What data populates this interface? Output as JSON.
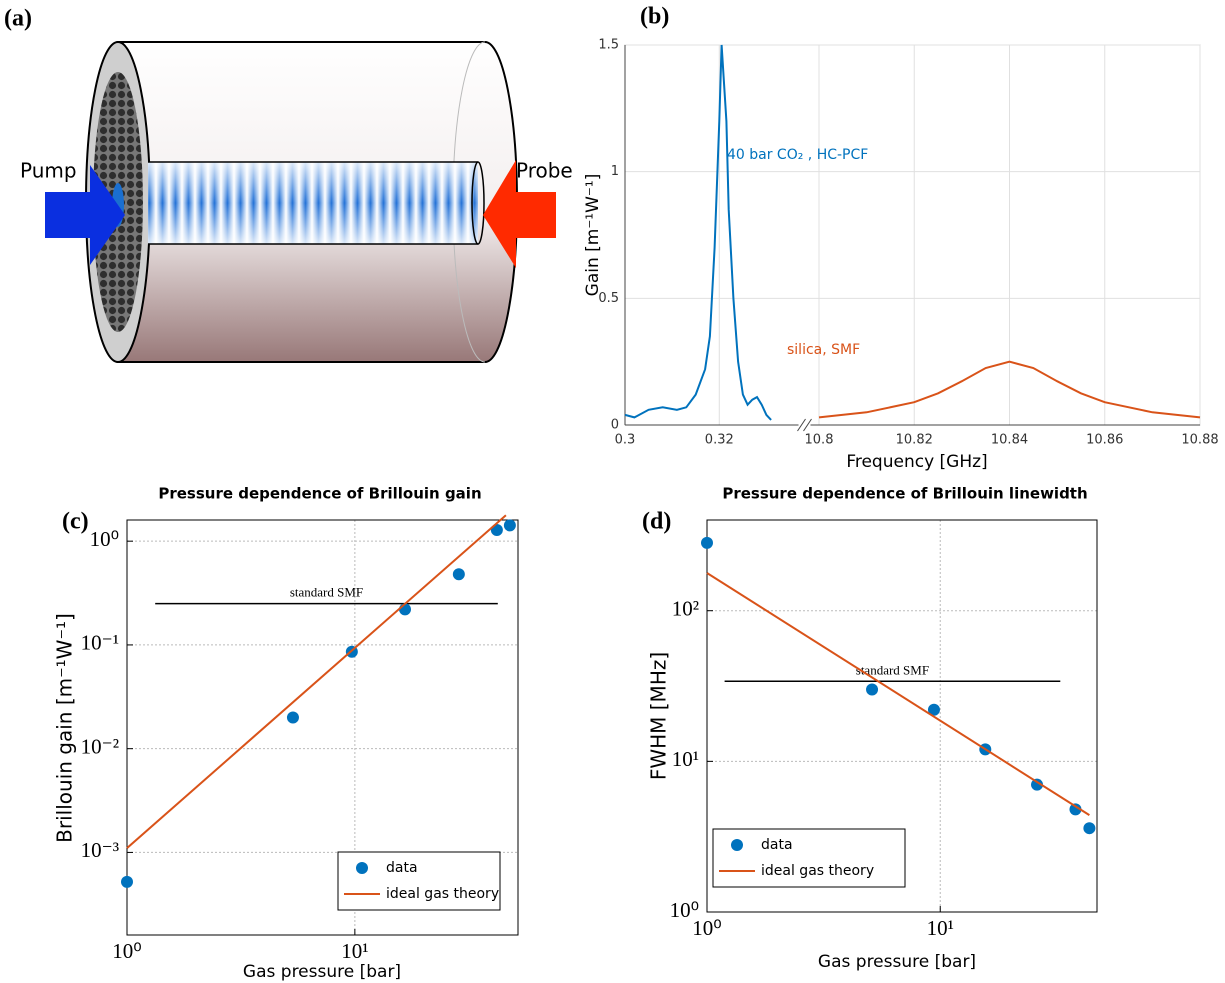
{
  "diagram": {
    "label": "(a)",
    "pump_label": "Pump",
    "probe_label": "Probe"
  },
  "chart_data": [
    {
      "type": "line",
      "panel_label": "(b)",
      "xlabel": "Frequency [GHz]",
      "ylabel": "Gain [m⁻¹W⁻¹]",
      "ylim": [
        0,
        1.5
      ],
      "yticks": [
        0,
        0.5,
        1,
        1.5
      ],
      "grid": true,
      "axis_break": true,
      "x_segments": [
        {
          "xlim": [
            0.3,
            0.335
          ],
          "xticks": [
            0.3,
            0.32
          ]
        },
        {
          "xlim": [
            10.8,
            10.88
          ],
          "xticks": [
            10.8,
            10.82,
            10.84,
            10.86,
            10.88
          ]
        }
      ],
      "series": [
        {
          "name": "40 bar CO₂ , HC-PCF",
          "color": "#0072bd",
          "segment": 0,
          "x": [
            0.3,
            0.302,
            0.305,
            0.308,
            0.311,
            0.313,
            0.315,
            0.317,
            0.318,
            0.319,
            0.32,
            0.3205,
            0.3215,
            0.322,
            0.323,
            0.324,
            0.325,
            0.326,
            0.327,
            0.328,
            0.329,
            0.33,
            0.331
          ],
          "values": [
            0.04,
            0.03,
            0.06,
            0.07,
            0.06,
            0.07,
            0.12,
            0.22,
            0.35,
            0.7,
            1.2,
            1.5,
            1.2,
            0.85,
            0.5,
            0.25,
            0.12,
            0.08,
            0.1,
            0.11,
            0.08,
            0.04,
            0.02
          ]
        },
        {
          "name": "silica, SMF",
          "color": "#d95319",
          "segment": 1,
          "x": [
            10.8,
            10.81,
            10.82,
            10.825,
            10.83,
            10.835,
            10.84,
            10.845,
            10.85,
            10.855,
            10.86,
            10.87,
            10.88
          ],
          "values": [
            0.03,
            0.05,
            0.09,
            0.125,
            0.173,
            0.225,
            0.25,
            0.225,
            0.173,
            0.125,
            0.09,
            0.05,
            0.03
          ]
        }
      ]
    },
    {
      "type": "scatter",
      "panel_label": "(c)",
      "title": "Pressure dependence of Brillouin gain",
      "xlabel": "Gas pressure [bar]",
      "ylabel": "Brillouin gain [m⁻¹W⁻¹]",
      "xscale": "log",
      "yscale": "log",
      "grid": true,
      "legend": "lower right",
      "xlim": [
        1,
        52
      ],
      "xticks": [
        {
          "value": 1,
          "label": "10⁰"
        },
        {
          "value": 10,
          "label": "10¹"
        }
      ],
      "ylim": [
        0.00016,
        1.6
      ],
      "yticks": [
        {
          "value": 0.001,
          "label": "10⁻³"
        },
        {
          "value": 0.01,
          "label": "10⁻²"
        },
        {
          "value": 0.1,
          "label": "10⁻¹"
        },
        {
          "value": 1,
          "label": "10⁰"
        }
      ],
      "series": [
        {
          "name": "data",
          "color": "#0072bd",
          "marker": "circle",
          "x": [
            1,
            5.35,
            9.7,
            16.6,
            28.6,
            42,
            47.9
          ],
          "values": [
            0.00052,
            0.02,
            0.086,
            0.22,
            0.48,
            1.28,
            1.42
          ]
        },
        {
          "name": "ideal gas theory",
          "color": "#d95319",
          "marker": "line",
          "x": [
            1,
            46
          ],
          "values": [
            0.0011,
            1.78
          ]
        }
      ],
      "reference_line": {
        "label": "standard SMF",
        "color": "#000000",
        "x": [
          1.33,
          42.4
        ],
        "values": [
          0.25,
          0.25
        ]
      }
    },
    {
      "type": "scatter",
      "panel_label": "(d)",
      "title": "Pressure dependence of Brillouin linewidth",
      "xlabel": "Gas pressure [bar]",
      "ylabel": "FWHM [MHz]",
      "xscale": "log",
      "yscale": "log",
      "grid": true,
      "legend": "lower left",
      "xlim": [
        1,
        47
      ],
      "xticks": [
        {
          "value": 1,
          "label": "10⁰"
        },
        {
          "value": 10,
          "label": "10¹"
        }
      ],
      "ylim": [
        1,
        400
      ],
      "yticks": [
        {
          "value": 1,
          "label": "10⁰"
        },
        {
          "value": 10,
          "label": "10¹"
        },
        {
          "value": 100,
          "label": "10²"
        }
      ],
      "series": [
        {
          "name": "data",
          "color": "#0072bd",
          "marker": "circle",
          "x": [
            1,
            5.1,
            9.4,
            15.6,
            26,
            38,
            43.6
          ],
          "values": [
            282,
            30,
            22,
            12,
            7,
            4.8,
            3.6
          ]
        },
        {
          "name": "ideal gas theory",
          "color": "#d95319",
          "marker": "line",
          "x": [
            1,
            43.6
          ],
          "values": [
            178,
            4.4
          ]
        }
      ],
      "reference_line": {
        "label": "standard SMF",
        "color": "#000000",
        "x": [
          1.19,
          32.7
        ],
        "values": [
          34,
          34
        ]
      }
    }
  ]
}
